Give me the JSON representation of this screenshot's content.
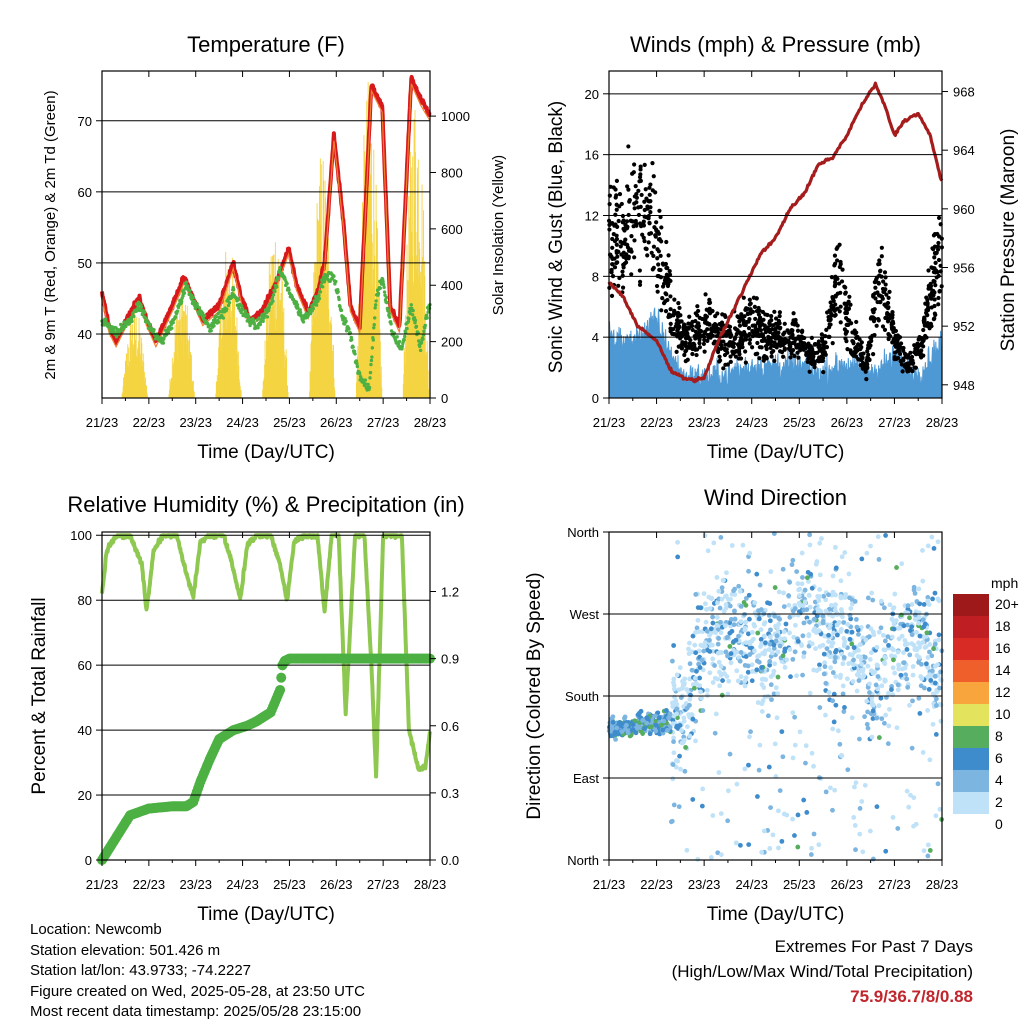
{
  "panels": {
    "temperature": {
      "title": "Temperature (F)",
      "ylabel_left": "2m & 9m T (Red, Orange) & 2m Td (Green)",
      "ylabel_right": "Solar Insolation (Yellow)",
      "xlabel": "Time (Day/UTC)"
    },
    "winds": {
      "title": "Winds (mph) & Pressure (mb)",
      "ylabel_left": "Sonic Wind & Gust (Blue, Black)",
      "ylabel_right": "Station Pressure (Maroon)",
      "xlabel": "Time (Day/UTC)"
    },
    "humidity": {
      "title": "Relative Humidity (%) & Precipitation (in)",
      "ylabel_left": "Percent & Total Rainfall",
      "xlabel": "Time (Day/UTC)"
    },
    "direction": {
      "title": "Wind Direction",
      "ylabel_left": "Direction (Colored By Speed)",
      "xlabel": "Time (Day/UTC)",
      "legend_title": "mph"
    }
  },
  "info": {
    "location": "Location: Newcomb",
    "elevation": "Station elevation: 501.426 m",
    "latlon": "Station lat/lon: 43.9733; -74.2227",
    "created": "Figure created on Wed, 2025-05-28, at 23:50 UTC",
    "latest": "Most recent data timestamp: 2025/05/28 23:15:00"
  },
  "extremes": {
    "line1": "Extremes For Past 7 Days",
    "line2": "(High/Low/Max Wind/Total Precipitation)",
    "value": "75.9/36.7/8/0.88"
  },
  "colors": {
    "temp_2m": "#d7191c",
    "temp_9m": "#f08030",
    "dewpoint": "#4cb043",
    "solar": "#f5d442",
    "wind": "#4e98d4",
    "gust": "#000000",
    "pressure": "#a51c1c",
    "rh": "#8fc850",
    "precip": "#4cb043"
  },
  "chart_data": [
    {
      "type": "line",
      "title": "Temperature (F)",
      "xlabel": "Time (Day/UTC)",
      "ylabel": "2m & 9m T (Red, Orange) & 2m Td (Green)",
      "ylabel_right": "Solar Insolation (Yellow)",
      "x_ticks": [
        "21/23",
        "22/23",
        "23/23",
        "24/23",
        "25/23",
        "26/23",
        "27/23",
        "28/23"
      ],
      "y_ticks": [
        40,
        50,
        60,
        70
      ],
      "y2_ticks": [
        0,
        200,
        400,
        600,
        800,
        1000
      ],
      "ylim": [
        31,
        77
      ],
      "y2lim": [
        0,
        1160
      ],
      "xlim": [
        0,
        7
      ],
      "series": [
        {
          "name": "2m T",
          "axis": "left",
          "x": [
            0,
            0.15,
            0.3,
            0.6,
            0.8,
            0.95,
            1.15,
            1.5,
            1.75,
            1.95,
            2.15,
            2.5,
            2.8,
            2.98,
            3.15,
            3.4,
            3.7,
            3.98,
            4.15,
            4.4,
            4.6,
            4.75,
            4.95,
            5.15,
            5.3,
            5.5,
            5.75,
            5.98,
            6.15,
            6.35,
            6.6,
            6.8,
            6.98
          ],
          "y": [
            46,
            41,
            39,
            43,
            45,
            42,
            39,
            44,
            48,
            45,
            42,
            44,
            50,
            45,
            42,
            43,
            47,
            52,
            47,
            43,
            46,
            50,
            68,
            56,
            44,
            41,
            75,
            72,
            44,
            41,
            76,
            73,
            71
          ]
        },
        {
          "name": "2m Td",
          "axis": "left",
          "x": [
            0,
            0.3,
            0.6,
            0.8,
            1.0,
            1.3,
            1.6,
            1.8,
            2.0,
            2.3,
            2.6,
            2.8,
            3.0,
            3.3,
            3.6,
            3.8,
            4.0,
            4.3,
            4.6,
            4.75,
            4.95,
            5.15,
            5.3,
            5.5,
            5.7,
            5.85,
            5.98,
            6.2,
            6.4,
            6.6,
            6.8,
            6.98
          ],
          "y": [
            42,
            40,
            42,
            44,
            41,
            39,
            43,
            47,
            44,
            41,
            43,
            46,
            43,
            41,
            44,
            49,
            46,
            42,
            45,
            48,
            48,
            42,
            40,
            34,
            32,
            45,
            48,
            40,
            38,
            44,
            38,
            44
          ]
        },
        {
          "name": "Solar Insolation",
          "axis": "right",
          "x": [
            0,
            0.45,
            0.7,
            0.95,
            1.45,
            1.7,
            1.95,
            2.45,
            2.7,
            2.95,
            3.45,
            3.7,
            3.95,
            4.45,
            4.7,
            4.95,
            5.45,
            5.7,
            5.95,
            6.45,
            6.7,
            6.95
          ],
          "y": [
            0,
            0,
            330,
            0,
            0,
            420,
            0,
            0,
            580,
            0,
            0,
            650,
            0,
            0,
            900,
            0,
            0,
            1150,
            0,
            0,
            1130,
            0
          ]
        }
      ]
    },
    {
      "type": "scatter",
      "title": "Winds (mph) & Pressure (mb)",
      "xlabel": "Time (Day/UTC)",
      "ylabel": "Sonic Wind & Gust (Blue, Black)",
      "ylabel_right": "Station Pressure (Maroon)",
      "x_ticks": [
        "21/23",
        "22/23",
        "23/23",
        "24/23",
        "25/23",
        "26/23",
        "27/23",
        "28/23"
      ],
      "y_ticks": [
        0,
        4,
        8,
        12,
        16,
        20
      ],
      "y2_ticks": [
        948,
        952,
        956,
        960,
        964,
        968
      ],
      "ylim": [
        0,
        21.5
      ],
      "y2lim": [
        947.1,
        969.4
      ],
      "xlim": [
        0,
        7
      ],
      "series": [
        {
          "name": "Sonic Wind",
          "axis": "left",
          "x": [
            0,
            0.5,
            1.0,
            1.5,
            2.0,
            2.5,
            3.0,
            3.5,
            4.0,
            4.5,
            5.0,
            5.5,
            6.0,
            6.5,
            7.0
          ],
          "y": [
            4,
            3.5,
            5,
            1.5,
            1.2,
            1.5,
            2,
            2,
            2,
            1.5,
            2,
            1.5,
            2.5,
            1.5,
            3.5
          ]
        },
        {
          "name": "Gust",
          "axis": "left",
          "x": [
            0,
            0.3,
            0.6,
            0.9,
            1.2,
            1.5,
            1.8,
            2.1,
            2.4,
            2.7,
            3.0,
            3.3,
            3.6,
            3.9,
            4.2,
            4.5,
            4.8,
            5.1,
            5.4,
            5.7,
            6.0,
            6.3,
            6.6,
            6.9
          ],
          "y": [
            11,
            10,
            13,
            12,
            7,
            4,
            4,
            5,
            4,
            4,
            5,
            4,
            4,
            4,
            3,
            3,
            8,
            4,
            2,
            8,
            4,
            2,
            4,
            9
          ]
        },
        {
          "name": "Station Pressure",
          "axis": "right",
          "x": [
            0,
            0.3,
            0.6,
            1.0,
            1.3,
            1.55,
            1.8,
            2.0,
            2.3,
            2.6,
            2.9,
            3.2,
            3.5,
            3.8,
            4.1,
            4.4,
            4.7,
            5.0,
            5.3,
            5.6,
            5.8,
            6.0,
            6.2,
            6.5,
            6.75,
            6.98
          ],
          "y": [
            955,
            954,
            952,
            951,
            949,
            948.5,
            948.3,
            948.5,
            951,
            953,
            955,
            957,
            958,
            960,
            961,
            963,
            963.5,
            965,
            967,
            968.5,
            967,
            965,
            966,
            966.5,
            965,
            962
          ]
        }
      ]
    },
    {
      "type": "line",
      "title": "Relative Humidity (%) & Precipitation (in)",
      "xlabel": "Time (Day/UTC)",
      "ylabel": "Percent & Total Rainfall",
      "x_ticks": [
        "21/23",
        "22/23",
        "23/23",
        "24/23",
        "25/23",
        "26/23",
        "27/23",
        "28/23"
      ],
      "y_ticks": [
        0,
        20,
        40,
        60,
        80,
        100
      ],
      "y2_ticks": [
        "0.0",
        "0.3",
        "0.6",
        "0.9",
        "1.2"
      ],
      "ylim": [
        0,
        101
      ],
      "y2lim": [
        0,
        1.466
      ],
      "xlim": [
        0,
        7
      ],
      "series": [
        {
          "name": "Relative Humidity",
          "axis": "left",
          "x": [
            0,
            0.1,
            0.3,
            0.6,
            0.85,
            0.95,
            1.1,
            1.3,
            1.6,
            1.8,
            1.95,
            2.1,
            2.3,
            2.6,
            2.8,
            2.95,
            3.1,
            3.3,
            3.6,
            3.8,
            3.95,
            4.1,
            4.3,
            4.6,
            4.75,
            4.9,
            5.05,
            5.2,
            5.4,
            5.6,
            5.75,
            5.85,
            6.0,
            6.2,
            6.4,
            6.55,
            6.75,
            6.9,
            7.0
          ],
          "y": [
            82,
            95,
            100,
            100,
            91,
            77,
            95,
            100,
            100,
            88,
            81,
            98,
            100,
            100,
            90,
            80,
            97,
            100,
            100,
            91,
            80,
            98,
            100,
            100,
            76,
            100,
            100,
            45,
            100,
            100,
            60,
            26,
            100,
            100,
            100,
            40,
            28,
            29,
            39
          ]
        },
        {
          "name": "Total Precipitation",
          "axis": "right",
          "x": [
            0,
            0.3,
            0.6,
            1.0,
            1.5,
            1.8,
            1.95,
            2.1,
            2.3,
            2.5,
            2.8,
            3.1,
            3.3,
            3.6,
            3.8,
            3.85,
            3.9,
            4.0,
            5.0,
            6.0,
            7.0
          ],
          "y": [
            0,
            0.1,
            0.2,
            0.23,
            0.24,
            0.24,
            0.26,
            0.35,
            0.45,
            0.54,
            0.58,
            0.6,
            0.62,
            0.66,
            0.76,
            0.87,
            0.89,
            0.9,
            0.9,
            0.9,
            0.9
          ]
        }
      ]
    },
    {
      "type": "scatter",
      "title": "Wind Direction",
      "xlabel": "Time (Day/UTC)",
      "ylabel": "Direction (Colored By Speed)",
      "x_ticks": [
        "21/23",
        "22/23",
        "23/23",
        "24/23",
        "25/23",
        "26/23",
        "27/23",
        "28/23"
      ],
      "y_ticks": [
        "North",
        "East",
        "South",
        "West",
        "North"
      ],
      "ylim": [
        0,
        360
      ],
      "xlim": [
        0,
        7
      ],
      "legend": {
        "title": "mph",
        "labels": [
          "20+",
          "18",
          "16",
          "14",
          "12",
          "10",
          "8",
          "6",
          "4",
          "2",
          "0"
        ],
        "colors": [
          "#9e1a1a",
          "#bf1e22",
          "#d92b25",
          "#ef5f2b",
          "#f7a53c",
          "#e3e35e",
          "#56ad5e",
          "#3f8ccc",
          "#7db5e1",
          "#bfe2f8"
        ]
      },
      "series": [
        {
          "name": "Direction",
          "x": [
            0,
            0.5,
            1.0,
            1.5,
            2.0,
            2.5,
            3.0,
            3.5,
            4.0,
            4.5,
            5.0,
            5.5,
            6.0,
            6.5,
            7.0
          ],
          "y": [
            150,
            145,
            150,
            150,
            250,
            260,
            240,
            230,
            270,
            250,
            240,
            200,
            230,
            250,
            200
          ]
        }
      ]
    }
  ]
}
